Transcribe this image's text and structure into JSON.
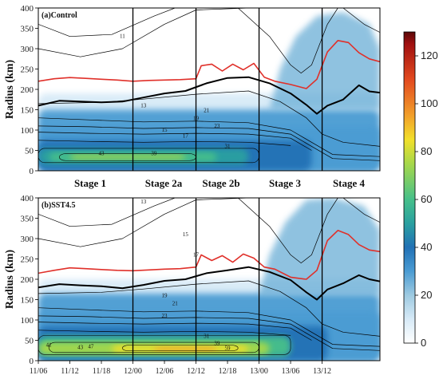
{
  "chart_data": [
    {
      "type": "heatmap",
      "panel_label": "(a)Control",
      "ylabel": "Radius (km)",
      "ylim": [
        0,
        400
      ],
      "yticks": [
        "0",
        "50",
        "100",
        "150",
        "200",
        "250",
        "300",
        "350",
        "400"
      ],
      "stage_boundaries_hours": [
        18,
        30,
        42,
        54
      ],
      "contour_values": [
        "11",
        "13",
        "15",
        "17",
        "19",
        "21",
        "23",
        "31",
        "39",
        "43"
      ],
      "red_contour": [
        [
          0,
          220
        ],
        [
          3,
          226
        ],
        [
          6,
          229
        ],
        [
          9,
          227
        ],
        [
          12,
          225
        ],
        [
          15,
          223
        ],
        [
          18,
          220
        ],
        [
          21,
          222
        ],
        [
          24,
          223
        ],
        [
          27,
          224
        ],
        [
          30,
          226
        ],
        [
          31,
          258
        ],
        [
          33,
          262
        ],
        [
          35,
          245
        ],
        [
          37,
          262
        ],
        [
          39,
          248
        ],
        [
          41,
          264
        ],
        [
          43,
          230
        ],
        [
          45,
          220
        ],
        [
          48,
          212
        ],
        [
          51,
          202
        ],
        [
          53,
          225
        ],
        [
          55,
          292
        ],
        [
          57,
          320
        ],
        [
          59,
          315
        ],
        [
          61,
          290
        ],
        [
          63,
          275
        ],
        [
          65,
          268
        ]
      ],
      "thick_black_contour": [
        [
          0,
          160
        ],
        [
          4,
          172
        ],
        [
          8,
          170
        ],
        [
          12,
          168
        ],
        [
          16,
          170
        ],
        [
          20,
          180
        ],
        [
          24,
          190
        ],
        [
          28,
          196
        ],
        [
          32,
          215
        ],
        [
          36,
          228
        ],
        [
          40,
          230
        ],
        [
          44,
          215
        ],
        [
          48,
          190
        ],
        [
          51,
          162
        ],
        [
          53,
          140
        ],
        [
          55,
          160
        ],
        [
          58,
          175
        ],
        [
          61,
          210
        ],
        [
          63,
          195
        ],
        [
          65,
          192
        ]
      ]
    },
    {
      "type": "heatmap",
      "panel_label": "(b)SST4.5",
      "ylabel": "Radius (km)",
      "ylim": [
        0,
        400
      ],
      "yticks": [
        "0",
        "50",
        "100",
        "150",
        "200",
        "250",
        "300",
        "350",
        "400"
      ],
      "stage_boundaries_hours": [
        18,
        30,
        42,
        54
      ],
      "contour_values": [
        "13",
        "15",
        "17",
        "19",
        "21",
        "23",
        "31",
        "39",
        "41",
        "43",
        "47",
        "59"
      ],
      "red_contour": [
        [
          0,
          215
        ],
        [
          3,
          222
        ],
        [
          6,
          228
        ],
        [
          9,
          226
        ],
        [
          12,
          224
        ],
        [
          15,
          222
        ],
        [
          18,
          221
        ],
        [
          21,
          223
        ],
        [
          24,
          225
        ],
        [
          27,
          226
        ],
        [
          30,
          230
        ],
        [
          31,
          260
        ],
        [
          33,
          246
        ],
        [
          35,
          258
        ],
        [
          37,
          242
        ],
        [
          39,
          262
        ],
        [
          41,
          252
        ],
        [
          43,
          230
        ],
        [
          45,
          225
        ],
        [
          48,
          205
        ],
        [
          51,
          200
        ],
        [
          53,
          222
        ],
        [
          55,
          295
        ],
        [
          57,
          320
        ],
        [
          59,
          310
        ],
        [
          61,
          285
        ],
        [
          63,
          272
        ],
        [
          65,
          268
        ]
      ],
      "thick_black_contour": [
        [
          0,
          180
        ],
        [
          4,
          188
        ],
        [
          8,
          185
        ],
        [
          12,
          183
        ],
        [
          16,
          178
        ],
        [
          20,
          186
        ],
        [
          24,
          196
        ],
        [
          28,
          200
        ],
        [
          32,
          215
        ],
        [
          36,
          222
        ],
        [
          40,
          230
        ],
        [
          44,
          218
        ],
        [
          48,
          198
        ],
        [
          51,
          168
        ],
        [
          53,
          150
        ],
        [
          55,
          175
        ],
        [
          58,
          190
        ],
        [
          61,
          210
        ],
        [
          63,
          200
        ],
        [
          65,
          195
        ]
      ]
    }
  ],
  "time_axis": {
    "start_label": "11/06",
    "labels": [
      "11/06",
      "11/12",
      "11/18",
      "12/00",
      "12/06",
      "12/12",
      "12/18",
      "13/00",
      "13/06",
      "13/12"
    ],
    "label_hours": [
      0,
      6,
      12,
      18,
      24,
      30,
      36,
      42,
      48,
      54
    ]
  },
  "stages": [
    "Stage 1",
    "Stage 2a",
    "Stage 2b",
    "Stage 3",
    "Stage 4"
  ],
  "colorbar": {
    "min": 0,
    "max": 130,
    "ticks": [
      "0",
      "20",
      "40",
      "60",
      "80",
      "100",
      "120"
    ],
    "stops": [
      {
        "v": 0,
        "c": "#ffffff"
      },
      {
        "v": 10,
        "c": "#d7eaf7"
      },
      {
        "v": 20,
        "c": "#9ecae1"
      },
      {
        "v": 30,
        "c": "#4b9cd3"
      },
      {
        "v": 40,
        "c": "#2171b5"
      },
      {
        "v": 50,
        "c": "#2aa0a0"
      },
      {
        "v": 60,
        "c": "#46c08a"
      },
      {
        "v": 75,
        "c": "#a7d84a"
      },
      {
        "v": 85,
        "c": "#f2e02a"
      },
      {
        "v": 95,
        "c": "#f2a02a"
      },
      {
        "v": 110,
        "c": "#e34a1f"
      },
      {
        "v": 125,
        "c": "#a01010"
      },
      {
        "v": 130,
        "c": "#5a0808"
      }
    ]
  },
  "colors": {
    "red_contour": "#e0302a",
    "thick_contour": "#000000",
    "thin_contour": "#000000",
    "stage_line": "#000000"
  }
}
